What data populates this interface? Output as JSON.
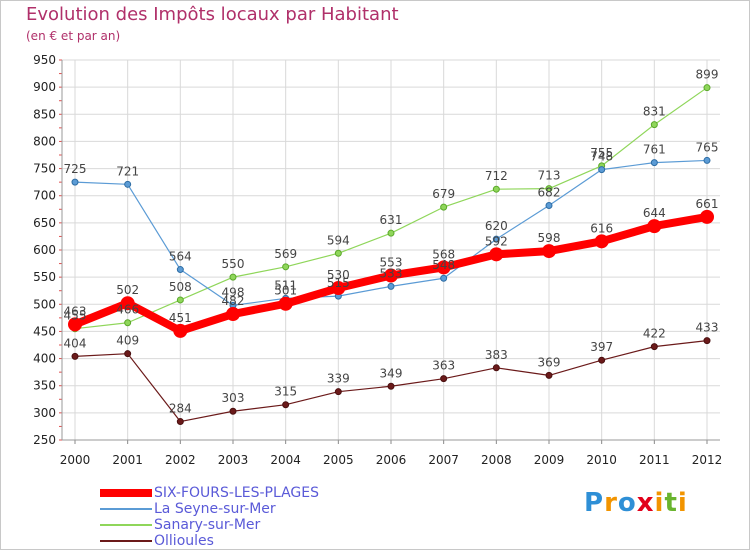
{
  "chart_data": {
    "type": "line",
    "title": "Evolution des Impôts locaux par Habitant",
    "subtitle": "(en € et par an)",
    "xlabel": "",
    "ylabel": "",
    "x": [
      "2000",
      "2001",
      "2002",
      "2003",
      "2004",
      "2005",
      "2006",
      "2007",
      "2008",
      "2009",
      "2010",
      "2011",
      "2012"
    ],
    "ylim": [
      250,
      950
    ],
    "yticks": [
      250,
      300,
      350,
      400,
      450,
      500,
      550,
      600,
      650,
      700,
      750,
      800,
      850,
      900,
      950
    ],
    "grid": true,
    "legend_position": "bottom-left",
    "series": [
      {
        "name": "SIX-FOURS-LES-PLAGES",
        "color": "#ff0000",
        "values": [
          463,
          502,
          451,
          482,
          501,
          530,
          553,
          568,
          592,
          598,
          616,
          644,
          661
        ]
      },
      {
        "name": "La Seyne-sur-Mer",
        "color": "#5b9bd5",
        "values": [
          725,
          721,
          564,
          498,
          511,
          515,
          533,
          548,
          620,
          682,
          748,
          761,
          765
        ]
      },
      {
        "name": "Sanary-sur-Mer",
        "color": "#8fd65a",
        "values": [
          455,
          466,
          508,
          550,
          569,
          594,
          631,
          679,
          712,
          713,
          755,
          831,
          899
        ]
      },
      {
        "name": "Ollioules",
        "color": "#6b1a1a",
        "values": [
          404,
          409,
          284,
          303,
          315,
          339,
          349,
          363,
          383,
          369,
          397,
          422,
          433
        ]
      }
    ]
  },
  "logo": {
    "text": "Proxiti",
    "letters": [
      "P",
      "r",
      "o",
      "x",
      "i",
      "t",
      "i"
    ],
    "colors": [
      "#2e8fd6",
      "#f29400",
      "#2e8fd6",
      "#e2001a",
      "#f29400",
      "#69b42e",
      "#f29400"
    ]
  }
}
